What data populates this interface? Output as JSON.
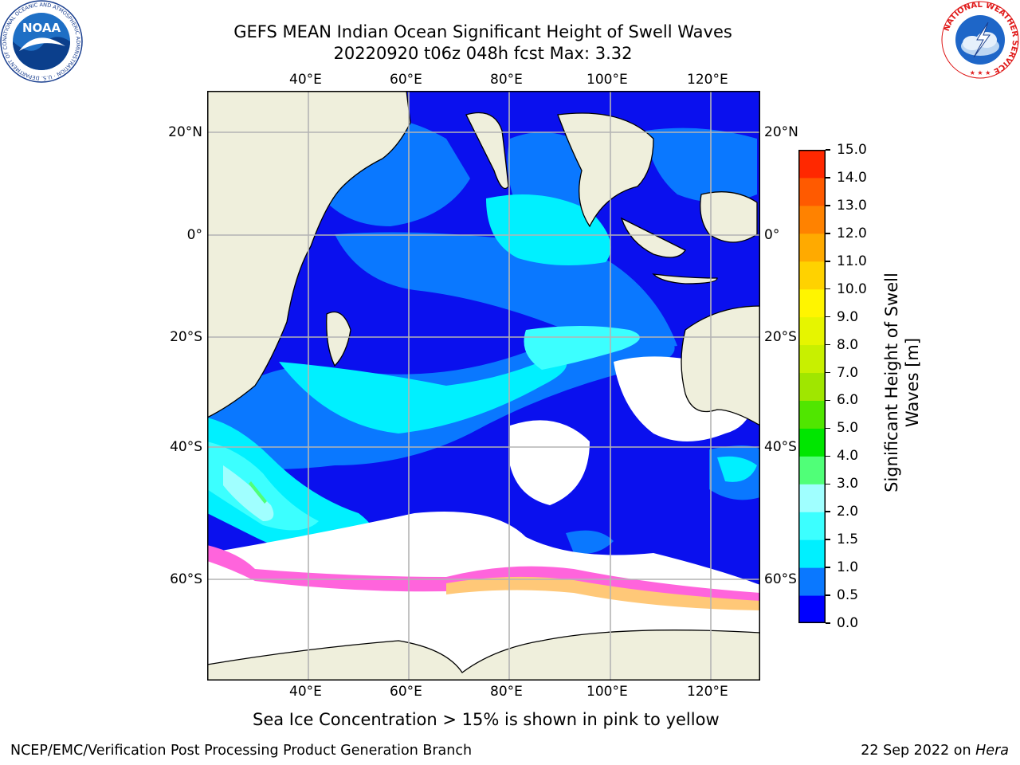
{
  "title": {
    "line1": "GEFS MEAN Indian Ocean Significant Height of Swell Waves",
    "line2": "20220920 t06z 048h fcst   Max: 3.32"
  },
  "axes": {
    "lon_labels": [
      "40°E",
      "60°E",
      "80°E",
      "100°E",
      "120°E"
    ],
    "lat_labels_left": [
      "20°N",
      "0°",
      "20°S",
      "40°S",
      "60°S"
    ],
    "lat_labels_right": [
      "20°N",
      "0°",
      "20°S",
      "40°S",
      "60°S"
    ]
  },
  "colorbar": {
    "label_line1": "Significant Height of Swell",
    "label_line2": "Waves [m]",
    "ticks": [
      "0.0",
      "0.5",
      "1.0",
      "1.5",
      "2.0",
      "3.0",
      "4.0",
      "5.0",
      "6.0",
      "7.0",
      "8.0",
      "9.0",
      "10.0",
      "11.0",
      "12.0",
      "13.0",
      "14.0",
      "15.0"
    ],
    "colors": [
      "#0000ff",
      "#0a78ff",
      "#00f0ff",
      "#3cffff",
      "#a0ffff",
      "#50ff78",
      "#00e600",
      "#50e600",
      "#a0e600",
      "#c8f000",
      "#e6f500",
      "#fff500",
      "#ffd200",
      "#ffaa00",
      "#ff8200",
      "#ff5a00",
      "#ff2800",
      "#ff0000"
    ]
  },
  "caption": "Sea Ice Concentration > 15% is shown in pink to yellow",
  "footer": {
    "left": "NCEP/EMC/Verification Post Processing Product Generation Branch",
    "right_prefix": "22 Sep 2022 on ",
    "right_machine": "Hera"
  },
  "logos": {
    "noaa_text": "NOAA",
    "noaa_ring": "NATIONAL OCEANIC AND ATMOSPHERIC ADMINISTRATION · U.S. DEPARTMENT OF COMMERCE ·",
    "nws_ring": "NATIONAL WEATHER SERVICE"
  }
}
